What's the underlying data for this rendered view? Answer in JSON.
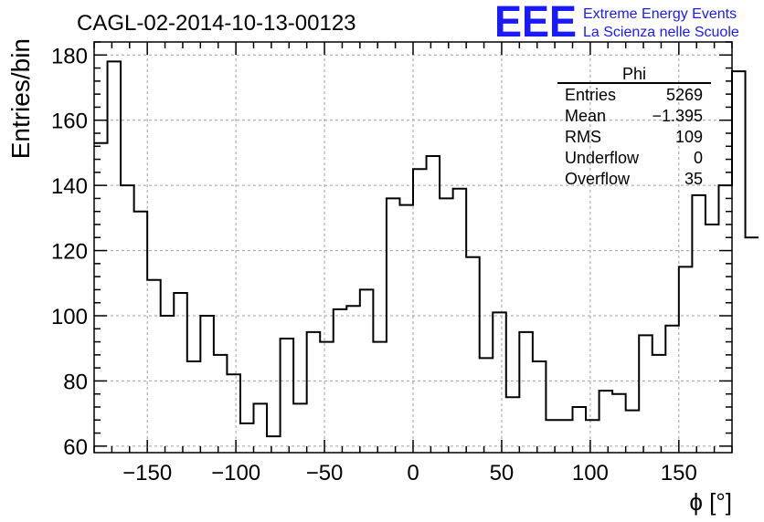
{
  "header": {
    "title": "CAGL-02-2014-10-13-00123",
    "logo_text": "EEE",
    "logo_line1": "Extreme Energy Events",
    "logo_line2": "La Scienza nelle Scuole"
  },
  "colors": {
    "logo": "#1a1aff",
    "histogram_line": "#000000",
    "grid": "#a0a0a0"
  },
  "stats_box": {
    "title": "Phi",
    "rows": [
      {
        "label": "Entries",
        "value": "5269"
      },
      {
        "label": "Mean",
        "value": "−1.395"
      },
      {
        "label": "RMS",
        "value": "109"
      },
      {
        "label": "Underflow",
        "value": "0"
      },
      {
        "label": "Overflow",
        "value": "35"
      }
    ]
  },
  "chart_data": {
    "type": "histogram",
    "title": "CAGL-02-2014-10-13-00123",
    "xlabel": "ϕ [°]",
    "ylabel": "Entries/bin",
    "xlim": [
      -180,
      180
    ],
    "ylim": [
      58,
      184
    ],
    "grid": true,
    "x_ticks": [
      -150,
      -100,
      -50,
      0,
      50,
      100,
      150
    ],
    "x_tick_labels": [
      "−150",
      "−100",
      "−50",
      "0",
      "50",
      "100",
      "150"
    ],
    "y_ticks": [
      60,
      80,
      100,
      120,
      140,
      160,
      180
    ],
    "y_tick_labels": [
      "60",
      "80",
      "100",
      "120",
      "140",
      "160",
      "180"
    ],
    "bin_width": 7.5,
    "bin_start": -180,
    "values": [
      153,
      178,
      140,
      132,
      111,
      100,
      107,
      86,
      100,
      88,
      82,
      67,
      73,
      63,
      93,
      73,
      95,
      92,
      102,
      103,
      108,
      92,
      136,
      134,
      145,
      149,
      136,
      139,
      118,
      87,
      101,
      75,
      95,
      86,
      68,
      68,
      72,
      68,
      77,
      76,
      71,
      94,
      88,
      97,
      115,
      137,
      128,
      140,
      175,
      124
    ]
  }
}
